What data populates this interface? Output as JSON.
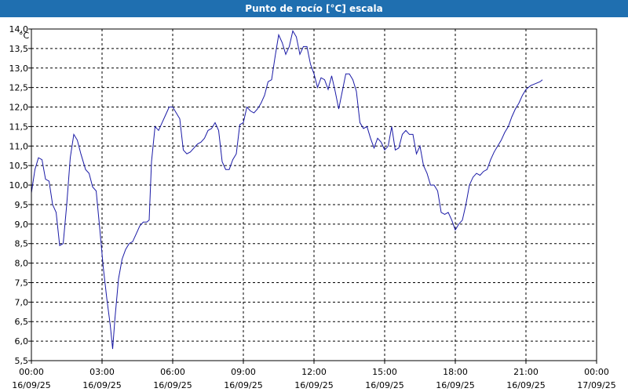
{
  "window": {
    "title": "Punto de rocío [°C] escala"
  },
  "chart_data": {
    "type": "line",
    "title": "Punto de rocío [°C] escala",
    "unit_label": "°C",
    "ylim": [
      5.5,
      14.0
    ],
    "xlim_hours": [
      0,
      24
    ],
    "grid": true,
    "y_ticks": [
      {
        "v": 14.0,
        "label": "14,0"
      },
      {
        "v": 13.5,
        "label": "13,5"
      },
      {
        "v": 13.0,
        "label": "13,0"
      },
      {
        "v": 12.5,
        "label": "12,5"
      },
      {
        "v": 12.0,
        "label": "12,0"
      },
      {
        "v": 11.5,
        "label": "11,5"
      },
      {
        "v": 11.0,
        "label": "11,0"
      },
      {
        "v": 10.5,
        "label": "10,5"
      },
      {
        "v": 10.0,
        "label": "10,0"
      },
      {
        "v": 9.5,
        "label": "9,5"
      },
      {
        "v": 9.0,
        "label": "9,0"
      },
      {
        "v": 8.5,
        "label": "8,5"
      },
      {
        "v": 8.0,
        "label": "8,0"
      },
      {
        "v": 7.5,
        "label": "7,5"
      },
      {
        "v": 7.0,
        "label": "7,0"
      },
      {
        "v": 6.5,
        "label": "6,5"
      },
      {
        "v": 6.0,
        "label": "6,0"
      },
      {
        "v": 5.5,
        "label": "5,5"
      }
    ],
    "x_ticks": [
      {
        "h": 0,
        "time": "00:00",
        "date": "16/09/25"
      },
      {
        "h": 3,
        "time": "03:00",
        "date": "16/09/25"
      },
      {
        "h": 6,
        "time": "06:00",
        "date": "16/09/25"
      },
      {
        "h": 9,
        "time": "09:00",
        "date": "16/09/25"
      },
      {
        "h": 12,
        "time": "12:00",
        "date": "16/09/25"
      },
      {
        "h": 15,
        "time": "15:00",
        "date": "16/09/25"
      },
      {
        "h": 18,
        "time": "18:00",
        "date": "16/09/25"
      },
      {
        "h": 21,
        "time": "21:00",
        "date": "16/09/25"
      },
      {
        "h": 24,
        "time": "00:00",
        "date": "17/09/25"
      }
    ],
    "series": [
      {
        "color": "#1a1aa6",
        "points": [
          [
            0.0,
            9.8
          ],
          [
            0.15,
            10.4
          ],
          [
            0.3,
            10.7
          ],
          [
            0.45,
            10.65
          ],
          [
            0.6,
            10.15
          ],
          [
            0.75,
            10.1
          ],
          [
            0.9,
            9.5
          ],
          [
            1.05,
            9.3
          ],
          [
            1.2,
            8.45
          ],
          [
            1.35,
            8.5
          ],
          [
            1.5,
            9.5
          ],
          [
            1.65,
            10.7
          ],
          [
            1.8,
            11.3
          ],
          [
            1.95,
            11.15
          ],
          [
            2.1,
            10.8
          ],
          [
            2.3,
            10.4
          ],
          [
            2.45,
            10.3
          ],
          [
            2.6,
            9.95
          ],
          [
            2.75,
            9.85
          ],
          [
            2.9,
            8.9
          ],
          [
            3.05,
            7.9
          ],
          [
            3.2,
            7.1
          ],
          [
            3.35,
            6.4
          ],
          [
            3.45,
            5.8
          ],
          [
            3.55,
            6.6
          ],
          [
            3.7,
            7.6
          ],
          [
            3.85,
            8.1
          ],
          [
            4.0,
            8.35
          ],
          [
            4.15,
            8.5
          ],
          [
            4.3,
            8.55
          ],
          [
            4.45,
            8.75
          ],
          [
            4.6,
            8.95
          ],
          [
            4.75,
            9.05
          ],
          [
            4.9,
            9.05
          ],
          [
            5.0,
            9.1
          ],
          [
            5.1,
            10.6
          ],
          [
            5.25,
            11.5
          ],
          [
            5.4,
            11.4
          ],
          [
            5.55,
            11.6
          ],
          [
            5.7,
            11.8
          ],
          [
            5.85,
            12.0
          ],
          [
            6.0,
            12.0
          ],
          [
            6.15,
            11.85
          ],
          [
            6.3,
            11.7
          ],
          [
            6.45,
            10.9
          ],
          [
            6.6,
            10.8
          ],
          [
            6.75,
            10.85
          ],
          [
            6.9,
            10.95
          ],
          [
            7.05,
            11.05
          ],
          [
            7.2,
            11.1
          ],
          [
            7.35,
            11.2
          ],
          [
            7.5,
            11.4
          ],
          [
            7.65,
            11.45
          ],
          [
            7.8,
            11.6
          ],
          [
            7.95,
            11.4
          ],
          [
            8.1,
            10.6
          ],
          [
            8.25,
            10.4
          ],
          [
            8.4,
            10.4
          ],
          [
            8.55,
            10.65
          ],
          [
            8.7,
            10.8
          ],
          [
            8.85,
            11.55
          ],
          [
            9.0,
            11.6
          ],
          [
            9.15,
            12.0
          ],
          [
            9.3,
            11.9
          ],
          [
            9.45,
            11.85
          ],
          [
            9.6,
            11.95
          ],
          [
            9.75,
            12.1
          ],
          [
            9.9,
            12.3
          ],
          [
            10.05,
            12.65
          ],
          [
            10.2,
            12.7
          ],
          [
            10.35,
            13.3
          ],
          [
            10.5,
            13.85
          ],
          [
            10.65,
            13.65
          ],
          [
            10.8,
            13.35
          ],
          [
            10.95,
            13.55
          ],
          [
            11.1,
            13.95
          ],
          [
            11.25,
            13.8
          ],
          [
            11.4,
            13.35
          ],
          [
            11.55,
            13.55
          ],
          [
            11.7,
            13.55
          ],
          [
            11.85,
            13.1
          ],
          [
            12.0,
            12.85
          ],
          [
            12.15,
            12.5
          ],
          [
            12.3,
            12.75
          ],
          [
            12.45,
            12.7
          ],
          [
            12.6,
            12.45
          ],
          [
            12.75,
            12.8
          ],
          [
            12.9,
            12.4
          ],
          [
            13.05,
            11.95
          ],
          [
            13.2,
            12.4
          ],
          [
            13.35,
            12.85
          ],
          [
            13.5,
            12.85
          ],
          [
            13.65,
            12.7
          ],
          [
            13.8,
            12.4
          ],
          [
            13.95,
            11.6
          ],
          [
            14.1,
            11.45
          ],
          [
            14.25,
            11.5
          ],
          [
            14.4,
            11.2
          ],
          [
            14.55,
            10.95
          ],
          [
            14.7,
            11.2
          ],
          [
            14.85,
            11.1
          ],
          [
            15.0,
            10.9
          ],
          [
            15.15,
            11.0
          ],
          [
            15.3,
            11.5
          ],
          [
            15.45,
            10.9
          ],
          [
            15.6,
            10.95
          ],
          [
            15.75,
            11.3
          ],
          [
            15.9,
            11.4
          ],
          [
            16.05,
            11.3
          ],
          [
            16.2,
            11.3
          ],
          [
            16.35,
            10.8
          ],
          [
            16.5,
            11.0
          ],
          [
            16.65,
            10.5
          ],
          [
            16.8,
            10.3
          ],
          [
            16.95,
            10.0
          ],
          [
            17.1,
            10.0
          ],
          [
            17.25,
            9.85
          ],
          [
            17.4,
            9.3
          ],
          [
            17.55,
            9.25
          ],
          [
            17.7,
            9.3
          ],
          [
            17.85,
            9.1
          ],
          [
            18.0,
            8.85
          ],
          [
            18.15,
            9.0
          ],
          [
            18.3,
            9.1
          ],
          [
            18.45,
            9.5
          ],
          [
            18.6,
            10.0
          ],
          [
            18.75,
            10.2
          ],
          [
            18.9,
            10.3
          ],
          [
            19.05,
            10.25
          ],
          [
            19.2,
            10.35
          ],
          [
            19.35,
            10.4
          ],
          [
            19.5,
            10.65
          ],
          [
            19.65,
            10.85
          ],
          [
            19.8,
            11.0
          ],
          [
            19.95,
            11.15
          ],
          [
            20.1,
            11.35
          ],
          [
            20.25,
            11.5
          ],
          [
            20.4,
            11.75
          ],
          [
            20.55,
            11.95
          ],
          [
            20.7,
            12.1
          ],
          [
            20.85,
            12.3
          ],
          [
            21.0,
            12.45
          ],
          [
            21.2,
            12.55
          ],
          [
            21.4,
            12.6
          ],
          [
            21.6,
            12.65
          ],
          [
            21.7,
            12.7
          ]
        ]
      }
    ]
  }
}
